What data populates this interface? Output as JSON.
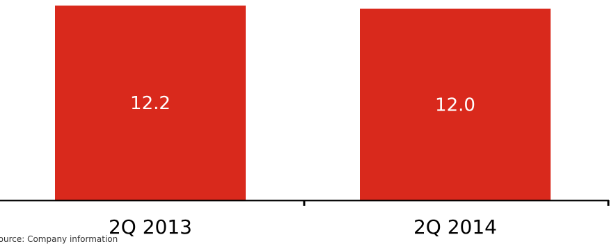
{
  "chart_data": {
    "type": "bar",
    "categories": [
      "2Q 2013",
      "2Q 2014"
    ],
    "values": [
      12.2,
      12.0
    ],
    "data_labels": [
      "12.2",
      "12.0"
    ],
    "title": "",
    "xlabel": "",
    "ylabel": "",
    "grid": false,
    "legend": "none",
    "bar_color": "#d9291c",
    "label_color": "#ffffff",
    "axis_color": "#000000"
  },
  "footer": {
    "source": "Source: Company information"
  }
}
